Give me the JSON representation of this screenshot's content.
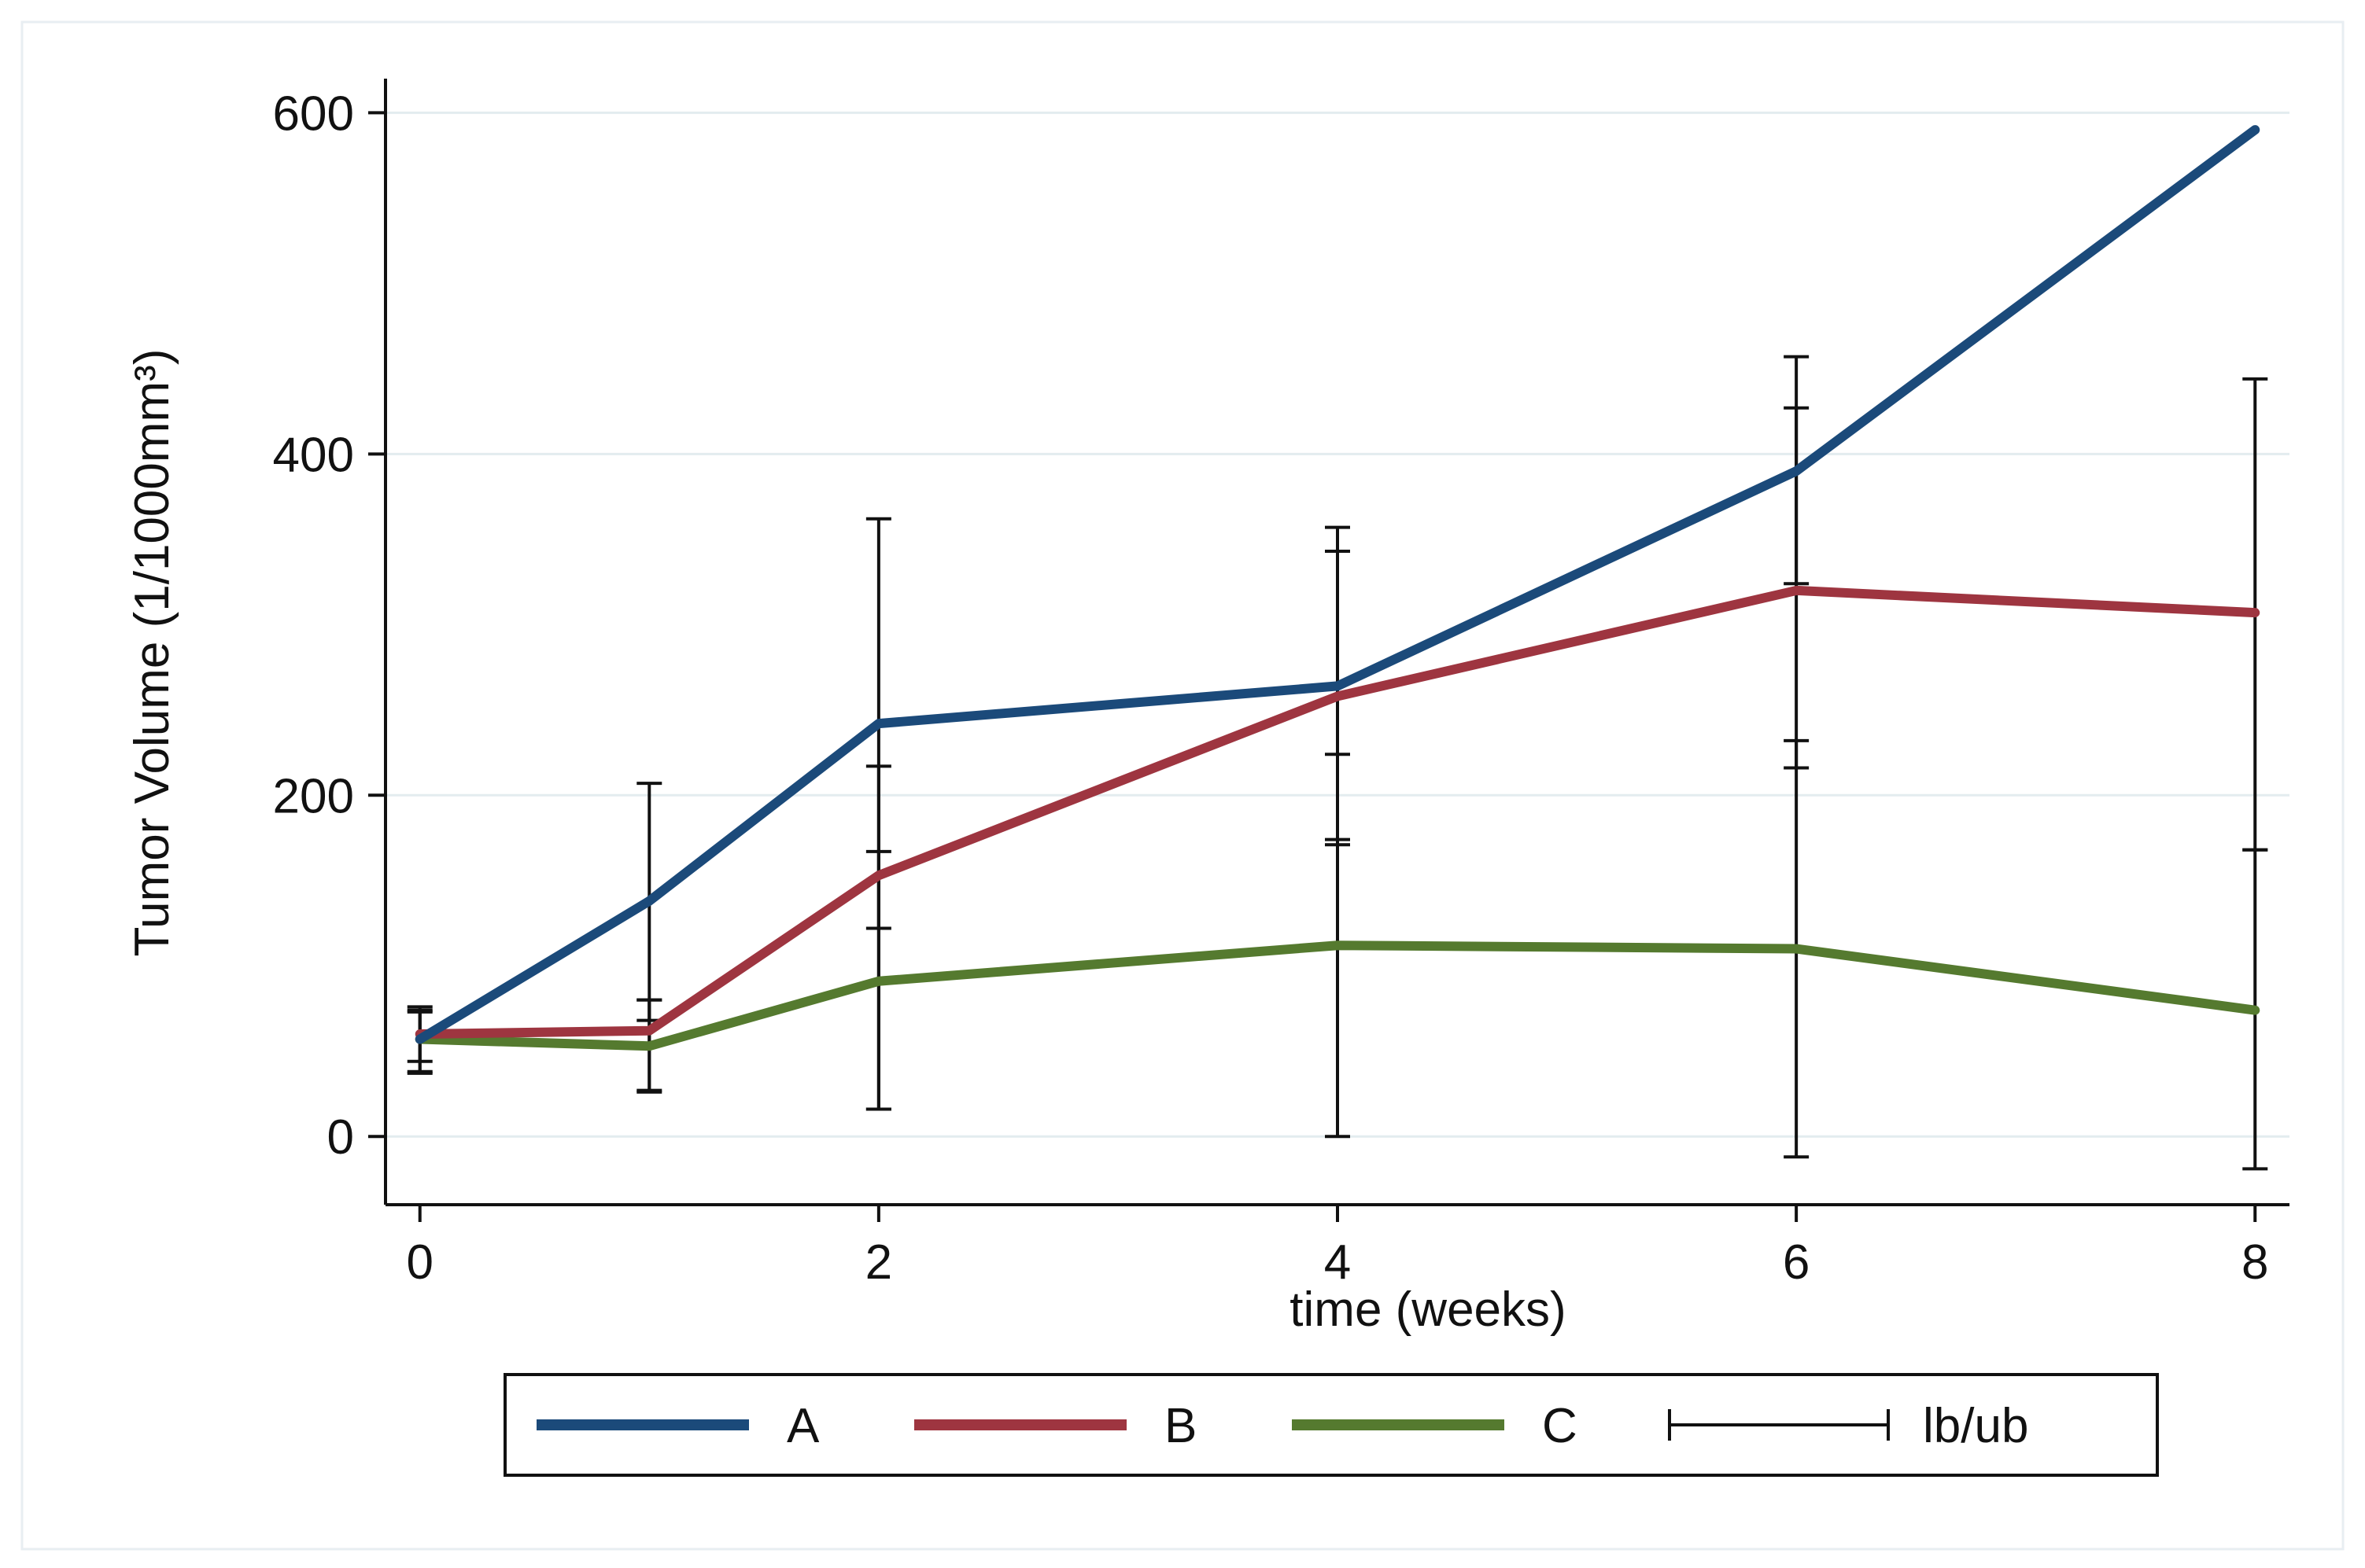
{
  "chart_data": {
    "type": "line",
    "title": "",
    "xlabel": "time (weeks)",
    "ylabel": "Tumor Volume (1/1000mm³)",
    "x": [
      0,
      1,
      2,
      4,
      6,
      8
    ],
    "xticks": [
      0,
      2,
      4,
      6,
      8
    ],
    "xtick_labels": [
      "0",
      "2",
      "4",
      "6",
      "8"
    ],
    "yticks": [
      0,
      200,
      400,
      600
    ],
    "ytick_labels": [
      "0",
      "200",
      "400",
      "600"
    ],
    "xlim": [
      -0.15,
      8.15
    ],
    "ylim": [
      -40,
      620
    ],
    "grid": true,
    "series": [
      {
        "name": "A",
        "color": "#1b4a7a",
        "values": [
          57,
          138,
          242,
          264,
          390,
          590
        ],
        "lb": [
          38,
          68,
          122,
          174,
          324,
          null
        ],
        "ub": [
          76,
          207,
          362,
          357,
          457,
          null
        ]
      },
      {
        "name": "B",
        "color": "#9e3540",
        "values": [
          60,
          62,
          153,
          258,
          320,
          307
        ],
        "lb": [
          44,
          26,
          16,
          171,
          216,
          168
        ],
        "ub": [
          74,
          80,
          217,
          343,
          427,
          444
        ]
      },
      {
        "name": "C",
        "color": "#557a2f",
        "values": [
          57,
          53,
          91,
          112,
          110,
          74
        ],
        "lb": [
          37,
          27,
          16,
          0,
          -12,
          -19
        ],
        "ub": [
          73,
          80,
          167,
          224,
          232,
          168
        ]
      }
    ],
    "legend": {
      "position": "bottom",
      "entries": [
        "A",
        "B",
        "C",
        "lb/ub"
      ]
    }
  }
}
